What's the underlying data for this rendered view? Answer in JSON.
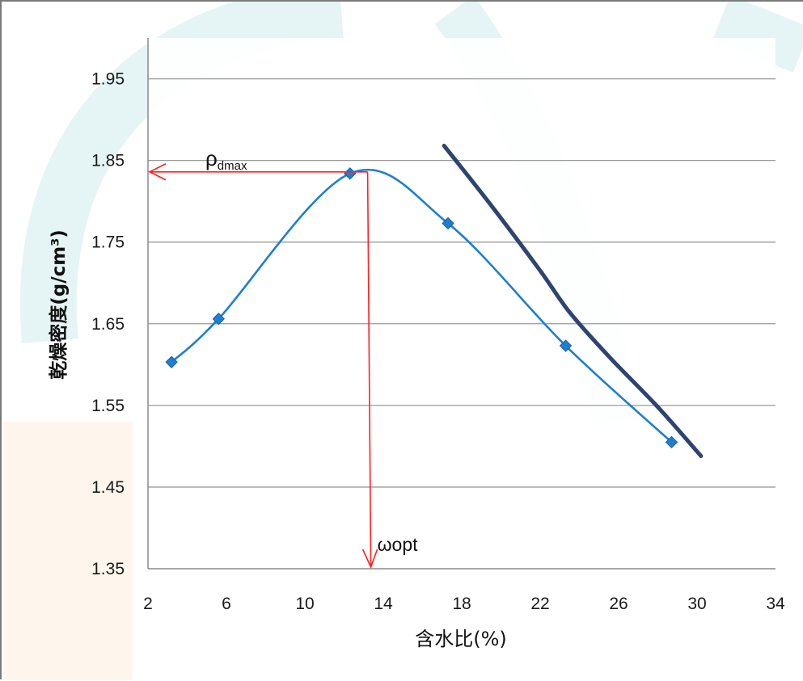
{
  "chart_data": {
    "type": "line",
    "xlabel": "含水比(%)",
    "ylabel": "乾燥密度(g/cm³)",
    "xlim": [
      2,
      34
    ],
    "ylim": [
      1.35,
      2.0
    ],
    "x_ticks": [
      "2",
      "6",
      "10",
      "14",
      "18",
      "22",
      "26",
      "30",
      "34"
    ],
    "y_ticks": [
      "1.35",
      "1.45",
      "1.55",
      "1.65",
      "1.75",
      "1.85",
      "1.95"
    ],
    "grid": "horizontal",
    "series": [
      {
        "x": [
          3.2,
          5.6,
          12.3,
          17.3,
          23.3,
          28.7
        ],
        "y": [
          1.603,
          1.656,
          1.834,
          1.773,
          1.623,
          1.505
        ],
        "color": "#1f7fcf",
        "marker": "diamond"
      },
      {
        "x": [
          17.1,
          19.5,
          22.0,
          23.5,
          25.5,
          28.0,
          30.2
        ],
        "y": [
          1.868,
          1.795,
          1.715,
          1.664,
          1.61,
          1.548,
          1.488
        ],
        "color": "#2e4470",
        "marker": "none"
      }
    ],
    "annotations": {
      "rho_main": "ρ",
      "rho_sub": "dmax",
      "w_opt": "ωopt",
      "peak_x": 13.2,
      "peak_y": 1.836,
      "color": "#ff2020"
    },
    "colors": {
      "grid": "#9a9a9a",
      "background_accent": "#dff3f3"
    }
  }
}
